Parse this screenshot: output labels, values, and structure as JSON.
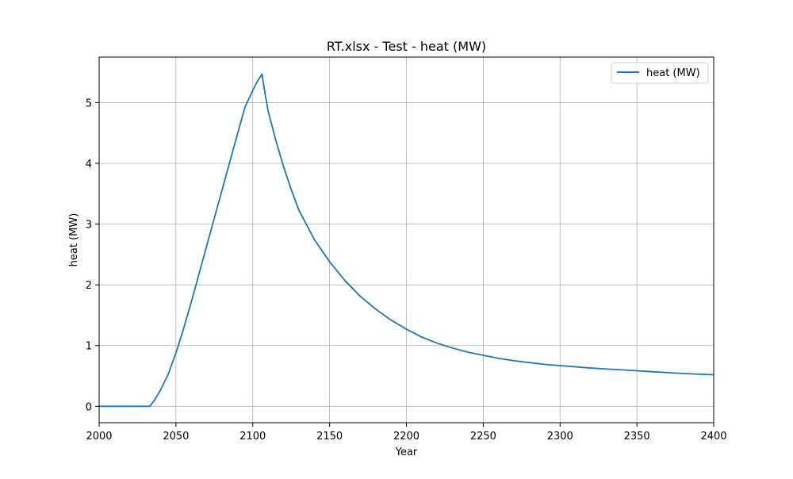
{
  "chart_data": {
    "type": "line",
    "title": "RT.xlsx - Test - heat (MW)",
    "xlabel": "Year",
    "ylabel": "heat (MW)",
    "xlim": [
      2000,
      2400
    ],
    "ylim": [
      -0.27,
      5.75
    ],
    "x_ticks": [
      2000,
      2050,
      2100,
      2150,
      2200,
      2250,
      2300,
      2350,
      2400
    ],
    "y_ticks": [
      0,
      1,
      2,
      3,
      4,
      5
    ],
    "grid": true,
    "legend_position": "top-right",
    "series": [
      {
        "name": "heat (MW)",
        "color": "#1f77b4",
        "x": [
          2000,
          2010,
          2020,
          2030,
          2033,
          2036,
          2040,
          2045,
          2050,
          2055,
          2060,
          2065,
          2070,
          2075,
          2080,
          2085,
          2090,
          2095,
          2100,
          2103,
          2106,
          2108,
          2110,
          2115,
          2120,
          2125,
          2130,
          2140,
          2150,
          2160,
          2170,
          2180,
          2190,
          2200,
          2210,
          2220,
          2230,
          2240,
          2250,
          2260,
          2270,
          2280,
          2290,
          2300,
          2320,
          2340,
          2360,
          2380,
          2400
        ],
        "y": [
          0,
          0,
          0,
          0,
          0,
          0.1,
          0.27,
          0.53,
          0.88,
          1.28,
          1.72,
          2.18,
          2.64,
          3.1,
          3.56,
          4.02,
          4.48,
          4.93,
          5.2,
          5.35,
          5.47,
          5.15,
          4.86,
          4.38,
          3.95,
          3.57,
          3.23,
          2.75,
          2.38,
          2.07,
          1.81,
          1.6,
          1.42,
          1.27,
          1.14,
          1.04,
          0.96,
          0.89,
          0.84,
          0.79,
          0.75,
          0.72,
          0.69,
          0.67,
          0.63,
          0.6,
          0.57,
          0.54,
          0.52
        ]
      }
    ]
  }
}
